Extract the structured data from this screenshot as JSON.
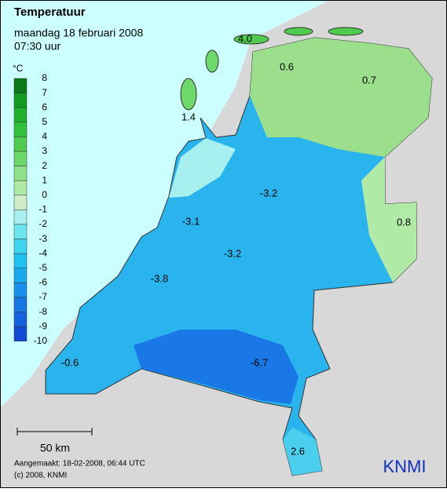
{
  "header": {
    "title": "Temperatuur",
    "date": "maandag 18 februari 2008",
    "time": "07:30 uur"
  },
  "legend": {
    "unit": "°C",
    "levels": [
      8,
      7,
      6,
      5,
      4,
      3,
      2,
      1,
      0,
      -1,
      -2,
      -3,
      -4,
      -5,
      -6,
      -7,
      -8,
      -9,
      -10
    ],
    "colors": [
      "#0a7a1a",
      "#139a22",
      "#1fb02c",
      "#33c03c",
      "#4fcc4f",
      "#6fd86a",
      "#8fe088",
      "#b0eaa6",
      "#cfeec8",
      "#a8f0f0",
      "#6ee6ee",
      "#3fd4ee",
      "#22c0ee",
      "#1aa8ee",
      "#1890ec",
      "#1676e6",
      "#1460de",
      "#124ad6"
    ]
  },
  "map": {
    "labels": [
      "4.0",
      "0.6",
      "0.7",
      "1.4",
      "0.8",
      "-3.2",
      "-3.1",
      "-3.2",
      "-3.8",
      "-0.6",
      "-6.7",
      "2.6"
    ]
  },
  "footer": {
    "scale": "50 km",
    "created": "Aangemaakt: 18-02-2008, 06:44 UTC",
    "copyright": "(c) 2008, KNMI",
    "logo": "KNMI"
  }
}
